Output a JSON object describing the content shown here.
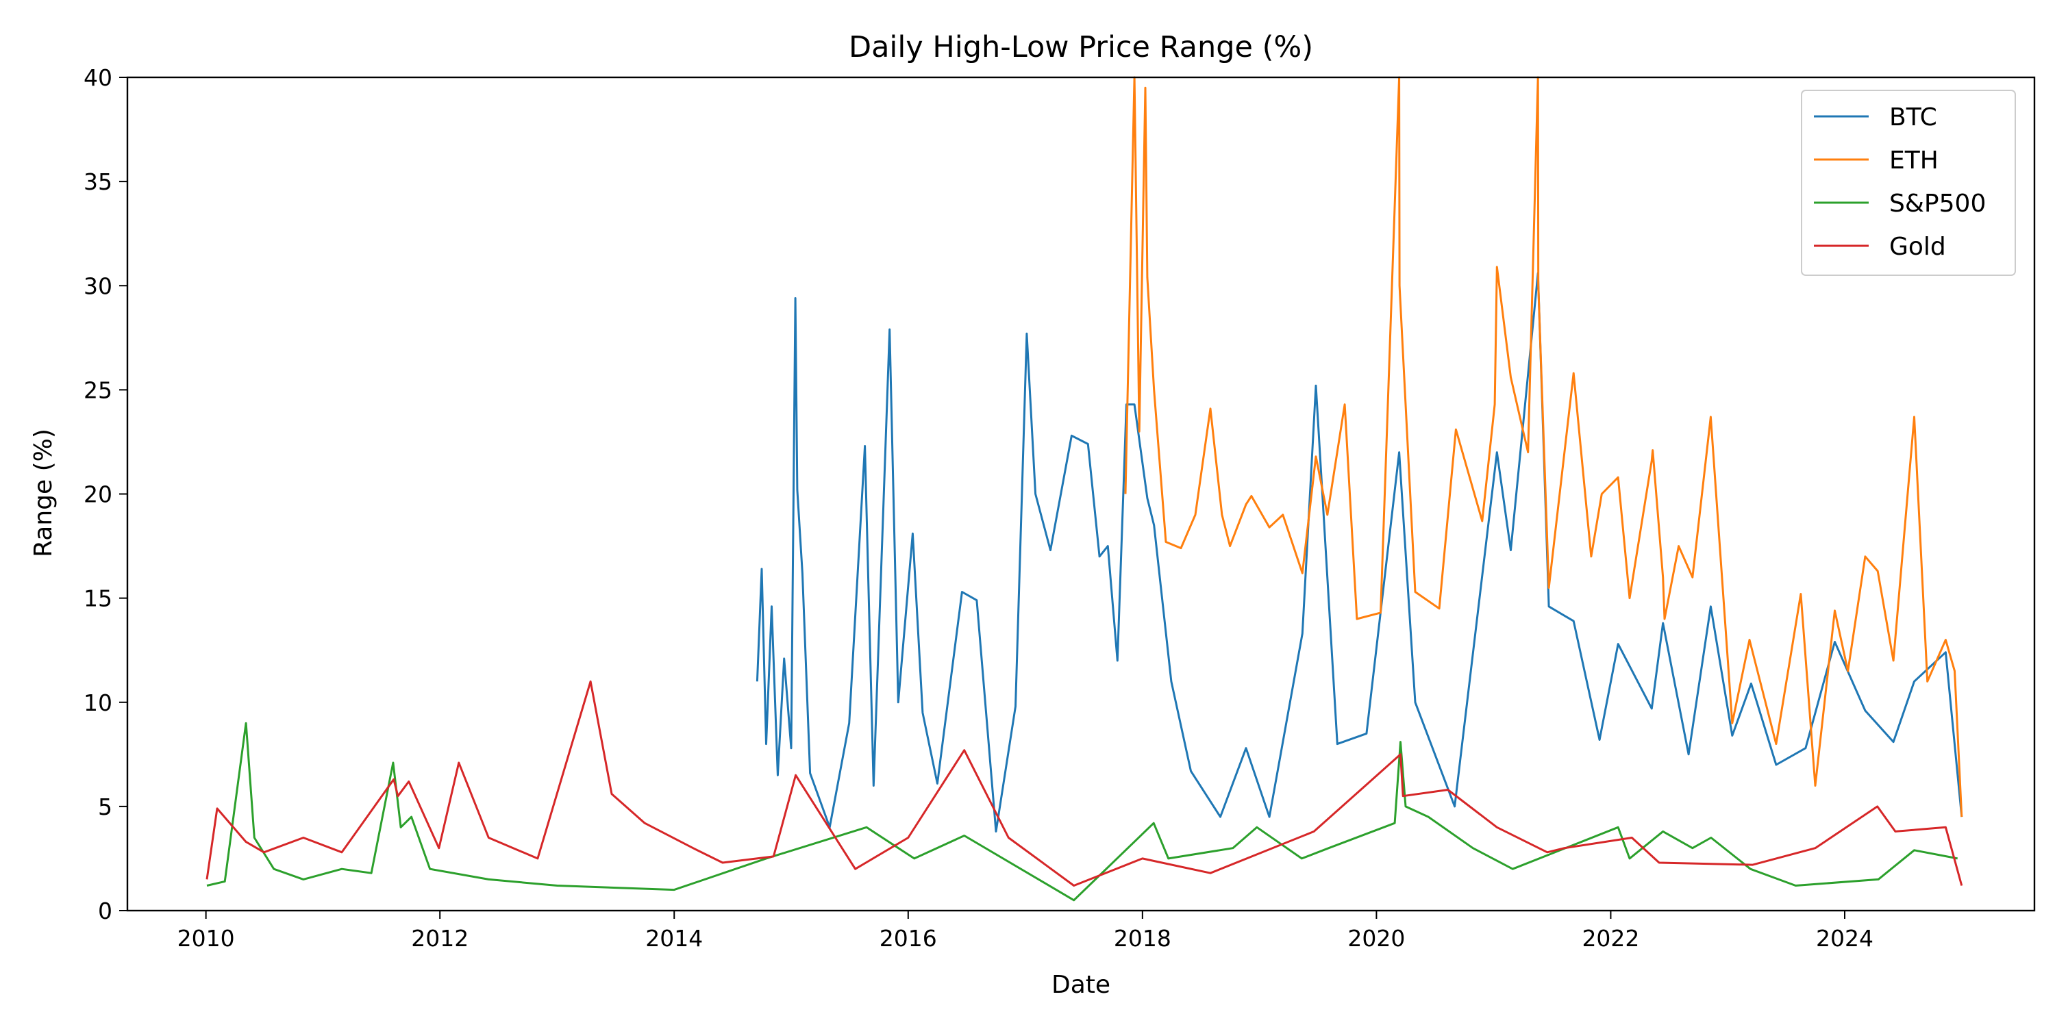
{
  "chart_data": {
    "type": "line",
    "title": "Daily High-Low Price Range (%)",
    "xlabel": "Date",
    "ylabel": "Range (%)",
    "xlim": [
      "2009-05-01",
      "2025-08-15"
    ],
    "ylim": [
      0,
      40
    ],
    "x_ticks": [
      "2010",
      "2012",
      "2014",
      "2016",
      "2018",
      "2020",
      "2022",
      "2024"
    ],
    "y_ticks": [
      0,
      5,
      10,
      15,
      20,
      25,
      30,
      35,
      40
    ],
    "grid": false,
    "legend": "top-right",
    "series": [
      {
        "name": "BTC",
        "color": "#1f77b4",
        "x": [
          "2014-09-17",
          "2014-10-01",
          "2014-10-15",
          "2014-11-01",
          "2014-11-20",
          "2014-12-10",
          "2015-01-01",
          "2015-01-14",
          "2015-01-20",
          "2015-02-05",
          "2015-03-01",
          "2015-05-01",
          "2015-07-01",
          "2015-08-19",
          "2015-09-15",
          "2015-11-04",
          "2015-12-01",
          "2016-01-15",
          "2016-02-15",
          "2016-04-01",
          "2016-06-17",
          "2016-08-02",
          "2016-10-01",
          "2016-12-01",
          "2017-01-05",
          "2017-02-01",
          "2017-03-20",
          "2017-05-25",
          "2017-07-15",
          "2017-08-20",
          "2017-09-15",
          "2017-10-15",
          "2017-11-12",
          "2017-12-07",
          "2018-01-16",
          "2018-02-06",
          "2018-04-01",
          "2018-06-01",
          "2018-09-01",
          "2018-11-20",
          "2019-02-01",
          "2019-05-15",
          "2019-06-26",
          "2019-09-01",
          "2019-12-01",
          "2020-03-12",
          "2020-05-01",
          "2020-09-01",
          "2021-01-11",
          "2021-02-23",
          "2021-05-19",
          "2021-06-22",
          "2021-09-07",
          "2021-11-27",
          "2022-01-24",
          "2022-05-09",
          "2022-06-13",
          "2022-09-01",
          "2022-11-09",
          "2023-01-15",
          "2023-03-15",
          "2023-06-01",
          "2023-09-01",
          "2023-12-01",
          "2024-03-05",
          "2024-06-01",
          "2024-08-05",
          "2024-11-11",
          "2024-12-31"
        ],
        "values": [
          11.0,
          16.4,
          8.0,
          14.6,
          6.5,
          12.1,
          7.8,
          29.4,
          20.2,
          16.2,
          6.6,
          4.0,
          9.0,
          22.3,
          6.0,
          27.9,
          10.0,
          18.1,
          9.5,
          6.1,
          15.3,
          14.9,
          3.8,
          9.8,
          27.7,
          20.0,
          17.3,
          22.8,
          22.4,
          17.0,
          17.5,
          12.0,
          24.3,
          24.3,
          19.8,
          18.5,
          11.0,
          6.7,
          4.5,
          7.8,
          4.5,
          13.3,
          25.2,
          8.0,
          8.5,
          22.0,
          10.0,
          5.0,
          22.0,
          17.3,
          30.6,
          14.6,
          13.9,
          8.2,
          12.8,
          9.7,
          13.8,
          7.5,
          14.6,
          8.4,
          10.9,
          7.0,
          7.8,
          12.9,
          9.6,
          8.1,
          11.0,
          12.4,
          4.5
        ]
      },
      {
        "name": "ETH",
        "color": "#ff7f0e",
        "x": [
          "2017-11-09",
          "2017-12-07",
          "2017-12-22",
          "2018-01-10",
          "2018-01-16",
          "2018-02-06",
          "2018-03-15",
          "2018-05-01",
          "2018-06-15",
          "2018-08-01",
          "2018-09-06",
          "2018-10-01",
          "2018-11-20",
          "2018-12-07",
          "2019-02-01",
          "2019-03-15",
          "2019-05-15",
          "2019-06-26",
          "2019-08-01",
          "2019-09-24",
          "2019-11-01",
          "2020-01-14",
          "2020-03-12",
          "2020-03-13",
          "2020-05-01",
          "2020-07-15",
          "2020-09-05",
          "2020-11-26",
          "2021-01-04",
          "2021-01-11",
          "2021-02-23",
          "2021-04-18",
          "2021-05-19",
          "2021-05-20",
          "2021-06-22",
          "2021-09-07",
          "2021-11-01",
          "2021-12-04",
          "2022-01-24",
          "2022-03-01",
          "2022-05-09",
          "2022-05-12",
          "2022-06-13",
          "2022-06-18",
          "2022-08-01",
          "2022-09-13",
          "2022-11-09",
          "2023-01-15",
          "2023-03-10",
          "2023-06-01",
          "2023-08-17",
          "2023-10-01",
          "2023-12-01",
          "2024-01-11",
          "2024-03-05",
          "2024-04-13",
          "2024-06-01",
          "2024-08-05",
          "2024-09-15",
          "2024-11-11",
          "2024-12-09",
          "2024-12-31"
        ],
        "values": [
          20.0,
          40.0,
          23.0,
          39.5,
          30.4,
          25.0,
          17.7,
          17.4,
          19.0,
          24.1,
          19.0,
          17.5,
          19.5,
          19.9,
          18.4,
          19.0,
          16.2,
          21.8,
          19.0,
          24.3,
          14.0,
          14.3,
          40.0,
          30.0,
          15.3,
          14.5,
          23.1,
          18.7,
          24.3,
          30.9,
          25.6,
          22.0,
          40.0,
          30.0,
          15.5,
          25.8,
          17.0,
          20.0,
          20.8,
          15.0,
          21.6,
          22.1,
          16.0,
          14.0,
          17.5,
          16.0,
          23.7,
          9.0,
          13.0,
          8.0,
          15.2,
          6.0,
          14.4,
          11.5,
          17.0,
          16.3,
          12.0,
          23.7,
          11.0,
          13.0,
          11.5,
          4.5
        ]
      },
      {
        "name": "S&P500",
        "color": "#2ca02c",
        "x": [
          "2010-01-04",
          "2010-03-01",
          "2010-05-06",
          "2010-06-01",
          "2010-08-01",
          "2010-11-01",
          "2011-03-01",
          "2011-06-01",
          "2011-08-08",
          "2011-09-01",
          "2011-10-04",
          "2011-12-01",
          "2012-06-01",
          "2013-01-01",
          "2014-01-01",
          "2014-10-15",
          "2015-08-24",
          "2016-01-20",
          "2016-06-24",
          "2017-06-01",
          "2018-02-05",
          "2018-03-23",
          "2018-10-10",
          "2018-12-24",
          "2019-05-13",
          "2019-08-05",
          "2020-02-27",
          "2020-03-16",
          "2020-04-01",
          "2020-06-11",
          "2020-10-28",
          "2021-03-01",
          "2022-01-24",
          "2022-03-01",
          "2022-06-13",
          "2022-09-13",
          "2022-11-10",
          "2023-03-13",
          "2023-08-01",
          "2024-04-15",
          "2024-08-05",
          "2024-12-18"
        ],
        "values": [
          1.2,
          1.4,
          9.0,
          3.5,
          2.0,
          1.5,
          2.0,
          1.8,
          7.1,
          4.0,
          4.5,
          2.0,
          1.5,
          1.2,
          1.0,
          2.5,
          4.0,
          2.5,
          3.6,
          0.5,
          4.2,
          2.5,
          3.0,
          4.0,
          2.5,
          3.0,
          4.2,
          8.1,
          5.0,
          4.5,
          3.0,
          2.0,
          4.0,
          2.5,
          3.8,
          3.0,
          3.5,
          2.0,
          1.2,
          1.5,
          2.9,
          2.5
        ]
      },
      {
        "name": "Gold",
        "color": "#d62728",
        "x": [
          "2010-01-04",
          "2010-02-05",
          "2010-05-06",
          "2010-07-01",
          "2010-11-01",
          "2011-03-01",
          "2011-08-10",
          "2011-08-23",
          "2011-09-26",
          "2011-12-29",
          "2012-02-29",
          "2012-06-01",
          "2012-11-01",
          "2013-04-15",
          "2013-06-20",
          "2013-10-01",
          "2014-03-01",
          "2014-06-01",
          "2014-11-07",
          "2015-01-15",
          "2015-07-20",
          "2016-01-01",
          "2016-06-24",
          "2016-11-09",
          "2017-06-01",
          "2018-01-01",
          "2018-08-01",
          "2019-06-20",
          "2020-03-16",
          "2020-03-24",
          "2020-08-11",
          "2021-01-11",
          "2021-06-17",
          "2021-08-09",
          "2022-03-08",
          "2022-06-01",
          "2023-03-20",
          "2023-10-01",
          "2024-04-12",
          "2024-06-07",
          "2024-11-11",
          "2024-12-31"
        ],
        "values": [
          1.5,
          4.9,
          3.3,
          2.8,
          3.5,
          2.8,
          6.3,
          5.5,
          6.2,
          3.0,
          7.1,
          3.5,
          2.5,
          11.0,
          5.6,
          4.2,
          3.0,
          2.3,
          2.6,
          6.5,
          2.0,
          3.5,
          7.7,
          3.5,
          1.2,
          2.5,
          1.8,
          3.8,
          7.5,
          5.5,
          5.8,
          4.0,
          2.8,
          3.0,
          3.5,
          2.3,
          2.2,
          3.0,
          5.0,
          3.8,
          4.0,
          1.2
        ]
      }
    ]
  }
}
